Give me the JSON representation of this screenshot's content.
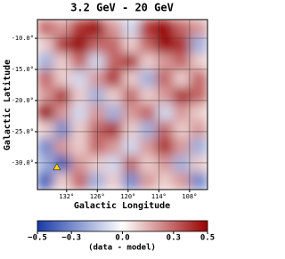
{
  "chart_data": {
    "type": "heatmap",
    "title": "3.2 GeV - 20 GeV",
    "x_label": "Galactic Longitude",
    "y_label": "Galactic Latitude",
    "xlim": [
      137.7,
      104.5
    ],
    "ylim": [
      -34.3,
      -7
    ],
    "xticks": [
      {
        "value": 132,
        "label": "132°"
      },
      {
        "value": 126,
        "label": "126°"
      },
      {
        "value": 120,
        "label": "120°"
      },
      {
        "value": 114,
        "label": "114°"
      },
      {
        "value": 108,
        "label": "108°"
      }
    ],
    "yticks": [
      {
        "value": -10,
        "label": "-10.0°"
      },
      {
        "value": -15,
        "label": "-15.0°"
      },
      {
        "value": -20,
        "label": "-20.0°"
      },
      {
        "value": -25,
        "label": "-25.0°"
      },
      {
        "value": -30,
        "label": "-30.0°"
      }
    ],
    "grid": true,
    "z": [
      [
        0.3,
        0.2,
        0.4,
        0.5,
        0.2,
        -0.1,
        0.4,
        0.5,
        0.3,
        0.2
      ],
      [
        0.1,
        0.4,
        0.5,
        0.3,
        0.3,
        0.1,
        0.3,
        0.5,
        0.4,
        -0.2
      ],
      [
        -0.2,
        0.1,
        0.3,
        -0.1,
        0.3,
        0.4,
        0.1,
        0.2,
        0.3,
        0.1
      ],
      [
        0.3,
        0.1,
        -0.1,
        0.2,
        0.4,
        0.1,
        -0.2,
        0.3,
        0.1,
        0.3
      ],
      [
        0.2,
        0.4,
        0.1,
        -0.2,
        0.1,
        0.3,
        0.1,
        0.2,
        0.4,
        0.3
      ],
      [
        0.5,
        0.2,
        -0.1,
        0.2,
        -0.2,
        0.2,
        0.3,
        -0.1,
        0.2,
        0.1
      ],
      [
        0.1,
        -0.3,
        0.1,
        0.3,
        0.4,
        0.1,
        -0.2,
        0.3,
        0.1,
        0.2
      ],
      [
        -0.3,
        0.2,
        0.1,
        0.3,
        0.2,
        -0.1,
        0.2,
        0.4,
        0.2,
        -0.2
      ],
      [
        -0.2,
        -0.4,
        0.2,
        0.1,
        -0.1,
        0.3,
        0.1,
        0.2,
        -0.2,
        0.1
      ],
      [
        -0.4,
        0.1,
        0.3,
        -0.2,
        0.1,
        -0.3,
        0.2,
        0.1,
        0.2,
        -0.3
      ]
    ],
    "zlim": [
      -0.5,
      0.5
    ],
    "colormap": [
      "#1a3aa8",
      "#ffffff",
      "#9a0000"
    ],
    "colorbar_label": "(data - model)",
    "colorbar_ticks": [
      {
        "value": -0.5,
        "label": "−0.5"
      },
      {
        "value": -0.3,
        "label": "−0.3"
      },
      {
        "value": 0,
        "label": "0.0"
      },
      {
        "value": 0.3,
        "label": "0.3"
      },
      {
        "value": 0.5,
        "label": "0.5"
      }
    ],
    "markers": [
      {
        "x": 133.9,
        "y": -30.7,
        "color": "#ffd700"
      }
    ]
  }
}
